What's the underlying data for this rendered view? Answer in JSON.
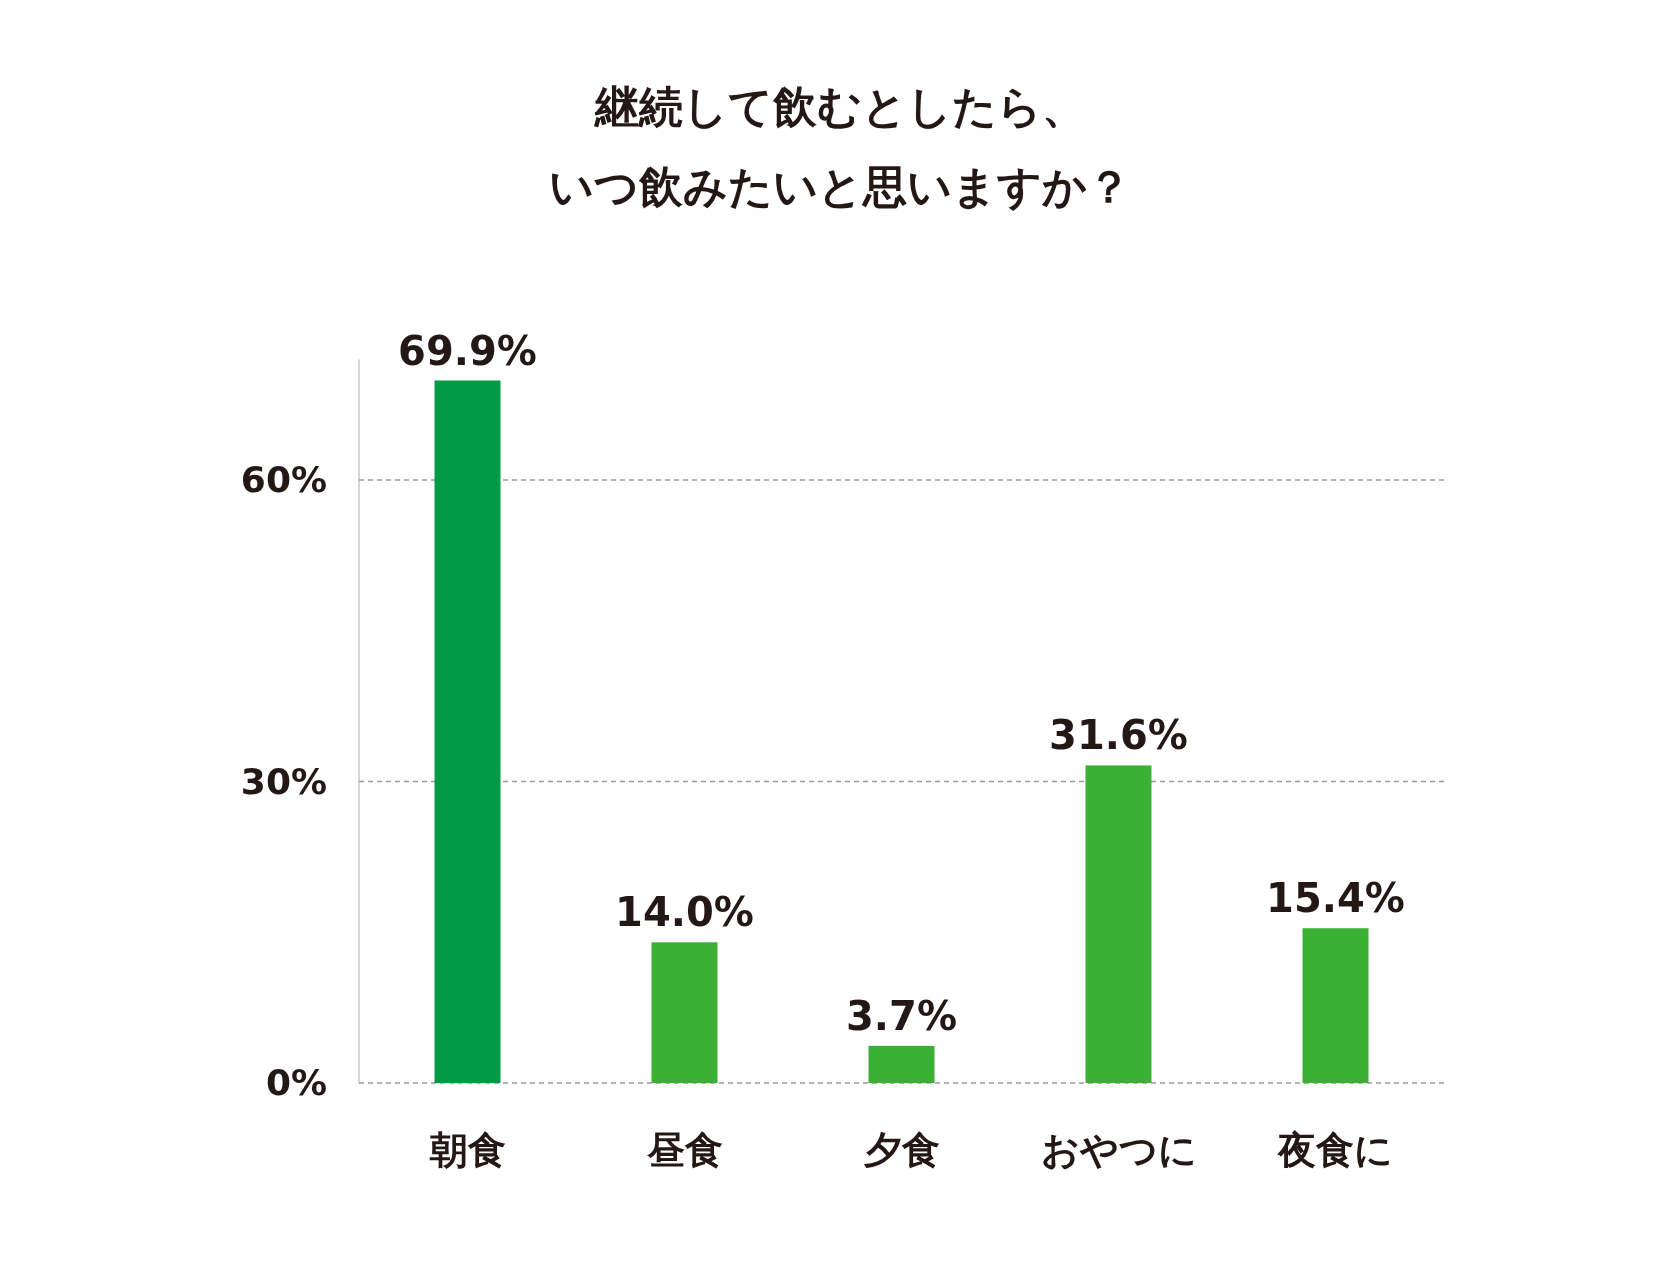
{
  "chart_data": {
    "type": "bar",
    "title": "継続して飲むとしたら、いつ飲みたいと思いますか？",
    "categories": [
      "朝食",
      "昼食",
      "夕食",
      "おやつに",
      "夜食に"
    ],
    "values": [
      69.9,
      14.0,
      3.7,
      31.6,
      15.4
    ],
    "value_labels": [
      "69.9%",
      "14.0%",
      "3.7%",
      "31.6%",
      "15.4%"
    ],
    "colors": [
      "#009a44",
      "#3cb035",
      "#3cb035",
      "#3cb035",
      "#3cb035"
    ],
    "ylim": [
      0,
      72
    ],
    "yticks": [
      {
        "value": 0,
        "label": "0%"
      },
      {
        "value": 30,
        "label": "30%"
      },
      {
        "value": 60,
        "label": "60%"
      }
    ],
    "grid": "y"
  }
}
